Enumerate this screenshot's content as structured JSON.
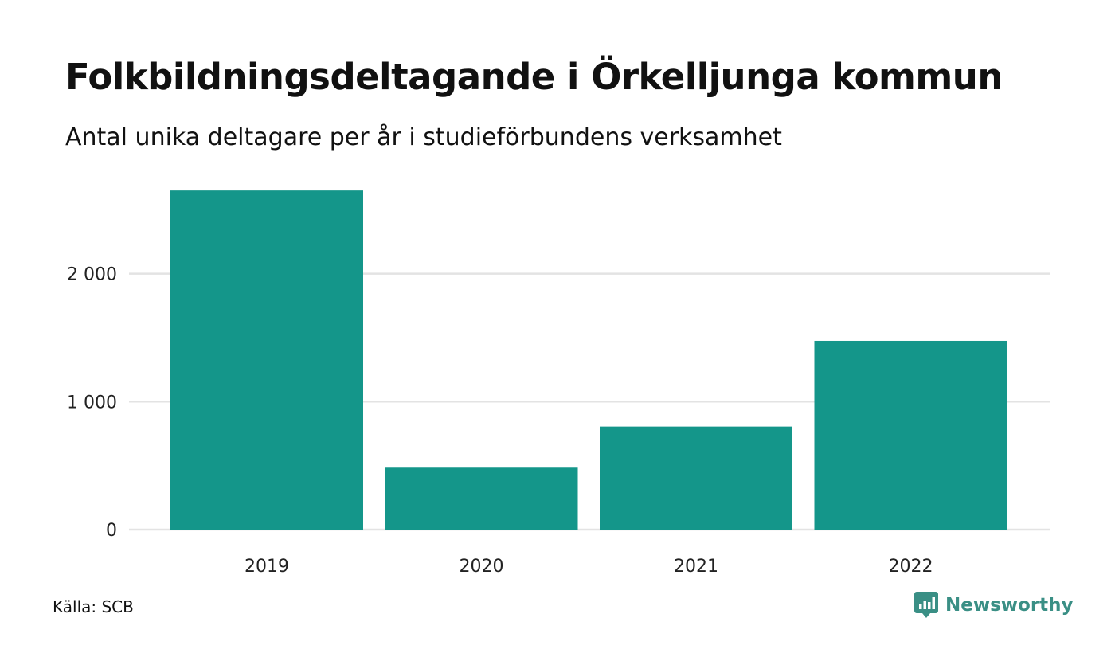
{
  "title": "Folkbildningsdeltagande i Örkelljunga kommun",
  "subtitle": "Antal unika deltagare per år i studieförbundens verksamhet",
  "source": "Källa: SCB",
  "brand": {
    "name": "Newsworthy",
    "icon": "newsworthy-logo-icon",
    "color": "#3a8f85"
  },
  "chart_data": {
    "type": "bar",
    "categories": [
      "2019",
      "2020",
      "2021",
      "2022"
    ],
    "values": [
      2650,
      490,
      805,
      1475
    ],
    "title": "Folkbildningsdeltagande i Örkelljunga kommun",
    "subtitle": "Antal unika deltagare per år i studieförbundens verksamhet",
    "xlabel": "",
    "ylabel": "",
    "ylim": [
      0,
      2650
    ],
    "yticks": [
      0,
      1000,
      2000
    ],
    "ytick_labels": [
      "0",
      "1 000",
      "2 000"
    ],
    "grid": true,
    "bar_color": "#14968a",
    "grid_color": "#e3e3e3"
  }
}
